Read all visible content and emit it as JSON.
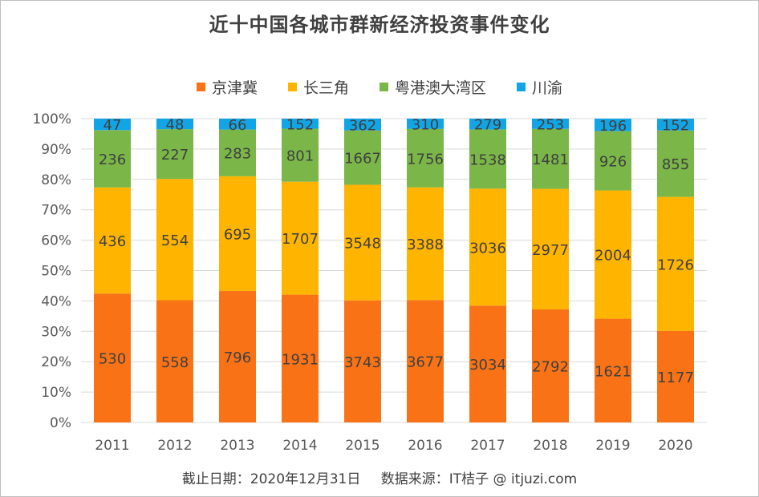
{
  "title": "近十中国各城市群新经济投资事件变化",
  "footer": {
    "date": "截止日期：2020年12月31日",
    "source": "数据来源：IT桔子 @ itjuzi.com"
  },
  "chart_data": {
    "type": "bar",
    "stacked": true,
    "normalized": "percent",
    "title": "近十中国各城市群新经济投资事件变化",
    "categories": [
      "2011",
      "2012",
      "2013",
      "2014",
      "2015",
      "2016",
      "2017",
      "2018",
      "2019",
      "2020"
    ],
    "yticks": [
      "0%",
      "10%",
      "20%",
      "30%",
      "40%",
      "50%",
      "60%",
      "70%",
      "80%",
      "90%",
      "100%"
    ],
    "ylim": [
      0,
      100
    ],
    "grid": true,
    "legend_position": "top",
    "series": [
      {
        "name": "京津冀",
        "color": "#F97316",
        "values": [
          530,
          558,
          796,
          1931,
          3743,
          3677,
          3034,
          2792,
          1621,
          1177
        ]
      },
      {
        "name": "长三角",
        "color": "#FFB400",
        "values": [
          436,
          554,
          695,
          1707,
          3548,
          3388,
          3036,
          2977,
          2004,
          1726
        ]
      },
      {
        "name": "粤港澳大湾区",
        "color": "#7AB648",
        "values": [
          236,
          227,
          283,
          801,
          1667,
          1756,
          1538,
          1481,
          926,
          855
        ]
      },
      {
        "name": "川渝",
        "color": "#12A5E6",
        "values": [
          47,
          48,
          66,
          152,
          362,
          310,
          279,
          253,
          196,
          152
        ]
      }
    ]
  }
}
